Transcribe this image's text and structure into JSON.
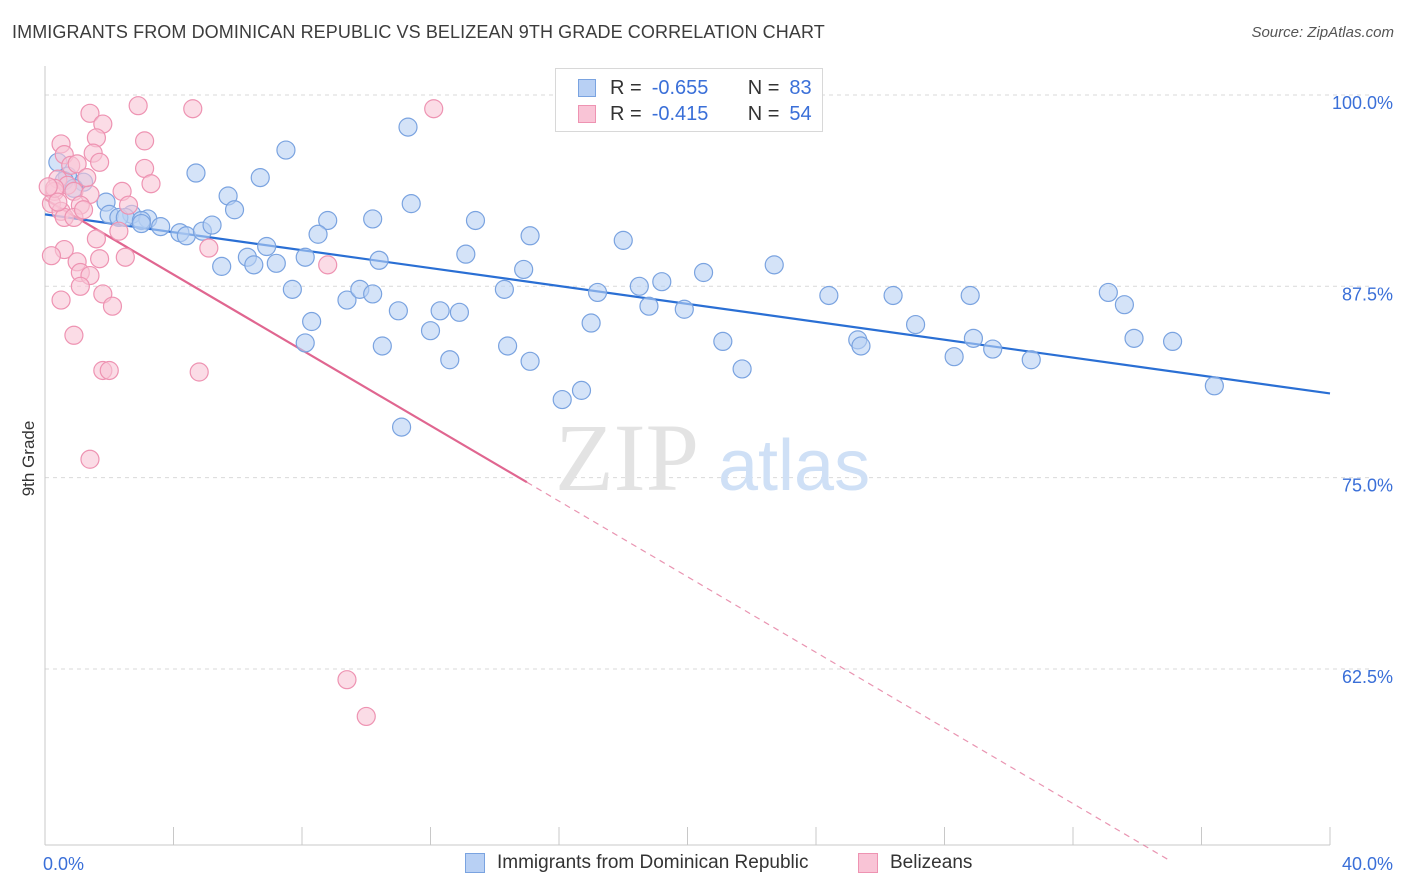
{
  "title": "IMMIGRANTS FROM DOMINICAN REPUBLIC VS BELIZEAN 9TH GRADE CORRELATION CHART",
  "source": "Source: ZipAtlas.com",
  "watermark": {
    "zip": "ZIP",
    "atlas": "atlas"
  },
  "legend": {
    "r_label": "R =",
    "n_label": "N =",
    "series1": {
      "r": "-0.655",
      "n": "83"
    },
    "series2": {
      "r": "-0.415",
      "n": "54"
    }
  },
  "bottom_legend": {
    "series1": "Immigrants from Dominican Republic",
    "series2": "Belizeans"
  },
  "colors": {
    "series1_fill": "#b8d0f4",
    "series1_stroke": "#7aa3e0",
    "series1_line": "#2a6fd4",
    "series2_fill": "#f9c4d6",
    "series2_stroke": "#ee93b2",
    "series2_line": "#e06690",
    "axis_text": "#3a6fd8",
    "grid": "#d9d9d9"
  },
  "chart_data": {
    "type": "scatter",
    "title": "IMMIGRANTS FROM DOMINICAN REPUBLIC VS BELIZEAN 9TH GRADE CORRELATION CHART",
    "xlabel": "",
    "ylabel": "9th Grade",
    "xlim": [
      0,
      40
    ],
    "ylim": [
      51,
      101.5
    ],
    "x_tick_labels": [
      "0.0%",
      "40.0%"
    ],
    "y_ticks": [
      62.5,
      75.0,
      87.5,
      100.0
    ],
    "y_tick_labels": [
      "62.5%",
      "75.0%",
      "87.5%",
      "100.0%"
    ],
    "grid": "horizontal dashed",
    "legend_position": "top-center",
    "series": [
      {
        "name": "Immigrants from Dominican Republic",
        "trend": {
          "x": [
            0,
            40
          ],
          "y": [
            92.2,
            80.5
          ]
        },
        "points": [
          [
            0.4,
            95.6
          ],
          [
            0.7,
            94.7
          ],
          [
            0.6,
            94.4
          ],
          [
            1.2,
            94.3
          ],
          [
            0.9,
            93.9
          ],
          [
            1.9,
            93.0
          ],
          [
            2.0,
            92.2
          ],
          [
            2.7,
            92.2
          ],
          [
            2.3,
            92.0
          ],
          [
            2.5,
            92.0
          ],
          [
            3.2,
            91.9
          ],
          [
            3.0,
            91.8
          ],
          [
            3.6,
            91.4
          ],
          [
            3.0,
            91.6
          ],
          [
            4.2,
            91.0
          ],
          [
            4.4,
            90.8
          ],
          [
            4.9,
            91.1
          ],
          [
            5.2,
            91.5
          ],
          [
            4.7,
            94.9
          ],
          [
            5.7,
            93.4
          ],
          [
            5.9,
            92.5
          ],
          [
            6.7,
            94.6
          ],
          [
            7.5,
            96.4
          ],
          [
            6.9,
            90.1
          ],
          [
            6.3,
            89.4
          ],
          [
            5.5,
            88.8
          ],
          [
            6.5,
            88.9
          ],
          [
            7.2,
            89.0
          ],
          [
            8.8,
            91.8
          ],
          [
            8.5,
            90.9
          ],
          [
            8.1,
            89.4
          ],
          [
            10.2,
            91.9
          ],
          [
            11.4,
            92.9
          ],
          [
            10.4,
            89.2
          ],
          [
            11.3,
            97.9
          ],
          [
            13.4,
            91.8
          ],
          [
            13.1,
            89.6
          ],
          [
            14.9,
            88.6
          ],
          [
            7.7,
            87.3
          ],
          [
            8.3,
            85.2
          ],
          [
            8.1,
            83.8
          ],
          [
            9.4,
            86.6
          ],
          [
            9.8,
            87.3
          ],
          [
            10.2,
            87.0
          ],
          [
            11.0,
            85.9
          ],
          [
            12.3,
            85.9
          ],
          [
            12.0,
            84.6
          ],
          [
            12.9,
            85.8
          ],
          [
            10.5,
            83.6
          ],
          [
            12.6,
            82.7
          ],
          [
            14.3,
            87.3
          ],
          [
            14.4,
            83.6
          ],
          [
            15.1,
            82.6
          ],
          [
            16.1,
            80.1
          ],
          [
            17.2,
            87.1
          ],
          [
            17.0,
            85.1
          ],
          [
            16.7,
            80.7
          ],
          [
            18.5,
            87.5
          ],
          [
            18.8,
            86.2
          ],
          [
            19.2,
            87.8
          ],
          [
            19.9,
            86.0
          ],
          [
            20.5,
            88.4
          ],
          [
            21.1,
            83.9
          ],
          [
            21.7,
            82.1
          ],
          [
            22.7,
            88.9
          ],
          [
            24.4,
            86.9
          ],
          [
            25.3,
            84.0
          ],
          [
            25.4,
            83.6
          ],
          [
            26.4,
            86.9
          ],
          [
            27.1,
            85.0
          ],
          [
            28.3,
            82.9
          ],
          [
            28.9,
            84.1
          ],
          [
            28.8,
            86.9
          ],
          [
            29.5,
            83.4
          ],
          [
            30.7,
            82.7
          ],
          [
            33.1,
            87.1
          ],
          [
            33.6,
            86.3
          ],
          [
            33.9,
            84.1
          ],
          [
            35.1,
            83.9
          ],
          [
            36.4,
            81.0
          ],
          [
            11.1,
            78.3
          ],
          [
            15.1,
            90.8
          ],
          [
            18.0,
            90.5
          ]
        ]
      },
      {
        "name": "Belizeans",
        "trend": {
          "x": [
            0,
            15.0
          ],
          "y": [
            93.2,
            74.7
          ]
        },
        "trend_extension": {
          "x": [
            15.0,
            35.0
          ],
          "y": [
            74.7,
            50.0
          ]
        },
        "points": [
          [
            0.5,
            96.8
          ],
          [
            0.6,
            96.1
          ],
          [
            0.8,
            95.4
          ],
          [
            1.0,
            95.5
          ],
          [
            0.4,
            94.5
          ],
          [
            0.7,
            94.1
          ],
          [
            0.3,
            93.7
          ],
          [
            0.9,
            93.7
          ],
          [
            1.4,
            93.5
          ],
          [
            0.2,
            92.9
          ],
          [
            0.5,
            92.4
          ],
          [
            0.6,
            92.0
          ],
          [
            1.1,
            92.8
          ],
          [
            0.9,
            92.0
          ],
          [
            0.6,
            89.9
          ],
          [
            0.2,
            89.5
          ],
          [
            1.0,
            89.1
          ],
          [
            1.7,
            89.3
          ],
          [
            1.6,
            90.6
          ],
          [
            2.5,
            89.4
          ],
          [
            1.1,
            88.4
          ],
          [
            1.4,
            88.2
          ],
          [
            1.1,
            87.5
          ],
          [
            1.8,
            87.0
          ],
          [
            0.5,
            86.6
          ],
          [
            2.1,
            86.2
          ],
          [
            0.9,
            84.3
          ],
          [
            1.8,
            82.0
          ],
          [
            2.0,
            82.0
          ],
          [
            4.8,
            81.9
          ],
          [
            1.4,
            76.2
          ],
          [
            1.4,
            98.8
          ],
          [
            1.8,
            98.1
          ],
          [
            2.9,
            99.3
          ],
          [
            4.6,
            99.1
          ],
          [
            12.1,
            99.1
          ],
          [
            1.6,
            97.2
          ],
          [
            3.1,
            97.0
          ],
          [
            1.5,
            96.2
          ],
          [
            1.7,
            95.6
          ],
          [
            3.1,
            95.2
          ],
          [
            3.3,
            94.2
          ],
          [
            2.4,
            93.7
          ],
          [
            2.6,
            92.8
          ],
          [
            5.1,
            90.0
          ],
          [
            8.8,
            88.9
          ],
          [
            9.4,
            61.8
          ],
          [
            10.0,
            59.4
          ],
          [
            1.3,
            94.6
          ],
          [
            0.3,
            93.9
          ],
          [
            0.1,
            94.0
          ],
          [
            0.4,
            93.0
          ],
          [
            2.3,
            91.1
          ],
          [
            1.2,
            92.5
          ]
        ]
      }
    ]
  }
}
